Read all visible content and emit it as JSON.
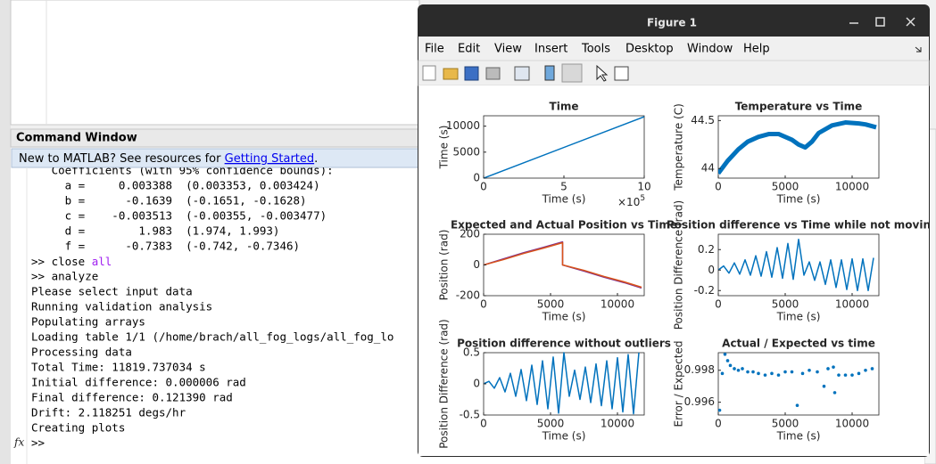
{
  "command_window": {
    "title": "Command Window",
    "banner": {
      "text": "New to MATLAB? See resources for ",
      "link": "Getting Started",
      "end": "."
    },
    "lines": [
      "   Coefficients (with 95% confidence bounds):",
      "     a =     0.003388  (0.003353, 0.003424)",
      "     b =      -0.1639  (-0.1651, -0.1628)",
      "     c =    -0.003513  (-0.00355, -0.003477)",
      "     d =        1.983  (1.974, 1.993)",
      "     f =      -0.7383  (-0.742, -0.7346)",
      {
        "text": ">> close ",
        "keyword": "all"
      },
      ">> analyze",
      "Please select input data",
      "Running validation analysis",
      "Populating arrays",
      "Loading table 1/1 (/home/brach/all_fog_logs/all_fog_lo",
      "Processing data",
      "Total Time: 11819.737034 s",
      "Initial difference: 0.000006 rad",
      "Final difference: 0.121390 rad",
      "Drift: 2.118251 degs/hr",
      "Creating plots",
      ">>"
    ],
    "prompt_icon": "fx"
  },
  "figure": {
    "title": "Figure 1",
    "menu": [
      "File",
      "Edit",
      "View",
      "Insert",
      "Tools",
      "Desktop",
      "Window",
      "Help"
    ]
  },
  "chart_data": [
    {
      "type": "line",
      "title": "Time",
      "x_label": "Time (s)",
      "y_label": "Time (s)",
      "x_multiplier": {
        "base": "×10",
        "exponent": "5"
      },
      "x": [
        0,
        10
      ],
      "series": [
        {
          "color": "#0072bd",
          "values": [
            0,
            11820
          ]
        }
      ],
      "xlim": [
        0,
        10
      ],
      "xticks": [
        0,
        5,
        10
      ],
      "ylim": [
        0,
        12000
      ],
      "yticks": [
        0,
        5000,
        10000
      ]
    },
    {
      "type": "line",
      "title": "Temperature vs Time",
      "x_label": "Time (s)",
      "y_label": "Temperature (C)",
      "x": [
        0,
        700,
        1500,
        2200,
        3000,
        3800,
        4500,
        5000,
        5500,
        6000,
        6500,
        7000,
        7500,
        8500,
        9500,
        10500,
        11000,
        11800
      ],
      "series": [
        {
          "color": "#0072bd",
          "values": [
            43.95,
            44.08,
            44.2,
            44.28,
            44.33,
            44.36,
            44.36,
            44.33,
            44.3,
            44.25,
            44.22,
            44.28,
            44.37,
            44.45,
            44.48,
            44.47,
            44.46,
            44.43
          ]
        }
      ],
      "xlim": [
        0,
        12000
      ],
      "xticks": [
        0,
        5000,
        10000
      ],
      "ylim": [
        43.9,
        44.55
      ],
      "yticks": [
        44,
        44.5
      ]
    },
    {
      "type": "line",
      "title": "Expected and Actual Position vs Time",
      "x_label": "Time (s)",
      "y_label": "Position (rad)",
      "x": [
        0,
        1500,
        3000,
        4500,
        5900,
        5900,
        7500,
        9000,
        10500,
        11800
      ],
      "series": [
        {
          "color": "#7e2f8e",
          "values": [
            0,
            40,
            80,
            115,
            150,
            0,
            -40,
            -80,
            -115,
            -150
          ]
        },
        {
          "color": "#d95319",
          "values": [
            0,
            35,
            75,
            110,
            145,
            0,
            -35,
            -75,
            -110,
            -145
          ]
        }
      ],
      "xlim": [
        0,
        12000
      ],
      "xticks": [
        0,
        5000,
        10000
      ],
      "ylim": [
        -200,
        200
      ],
      "yticks": [
        -200,
        0,
        200
      ]
    },
    {
      "type": "line",
      "title": "Position difference vs Time while not movin",
      "x_label": "Time (s)",
      "y_label": "Position Difference (rad)",
      "x": [
        0,
        400,
        800,
        1200,
        1600,
        2000,
        2400,
        2800,
        3200,
        3600,
        4000,
        4400,
        4800,
        5200,
        5600,
        6000,
        6400,
        6800,
        7200,
        7600,
        8000,
        8400,
        8800,
        9200,
        9600,
        10000,
        10400,
        10800,
        11200,
        11600
      ],
      "series": [
        {
          "color": "#0072bd",
          "values": [
            0,
            0.04,
            -0.03,
            0.07,
            -0.04,
            0.1,
            -0.05,
            0.14,
            -0.06,
            0.18,
            -0.07,
            0.22,
            -0.08,
            0.26,
            -0.09,
            0.3,
            -0.05,
            0.08,
            -0.1,
            0.08,
            -0.14,
            0.1,
            -0.17,
            0.1,
            -0.19,
            0.11,
            -0.2,
            0.11,
            -0.2,
            0.12
          ]
        }
      ],
      "xlim": [
        0,
        12000
      ],
      "xticks": [
        0,
        5000,
        10000
      ],
      "ylim": [
        -0.25,
        0.35
      ],
      "yticks": [
        -0.2,
        0,
        0.2
      ]
    },
    {
      "type": "line",
      "title": "Position difference without outliers",
      "x_label": "Time (s)",
      "y_label": "Position Difference (rad)",
      "x": [
        0,
        400,
        800,
        1200,
        1600,
        2000,
        2400,
        2800,
        3200,
        3600,
        4000,
        4400,
        4800,
        5200,
        5600,
        6000,
        6400,
        6800,
        7200,
        7600,
        8000,
        8400,
        8800,
        9200,
        9600,
        10000,
        10400,
        10800,
        11200,
        11600
      ],
      "series": [
        {
          "color": "#0072bd",
          "values": [
            0,
            0.04,
            -0.07,
            0.1,
            -0.13,
            0.17,
            -0.2,
            0.23,
            -0.27,
            0.3,
            -0.33,
            0.37,
            -0.4,
            0.43,
            -0.47,
            0.5,
            -0.2,
            0.22,
            -0.25,
            0.27,
            -0.3,
            0.32,
            -0.35,
            0.37,
            -0.4,
            0.42,
            -0.45,
            0.47,
            -0.48,
            0.5
          ]
        }
      ],
      "xlim": [
        0,
        12000
      ],
      "xticks": [
        0,
        5000,
        10000
      ],
      "ylim": [
        -0.5,
        0.5
      ],
      "yticks": [
        -0.5,
        0,
        0.5
      ]
    },
    {
      "type": "scatter",
      "title": "Actual / Expected vs time",
      "x_label": "Time (s)",
      "y_label": "Error / Expected",
      "x": [
        100,
        300,
        500,
        700,
        900,
        1200,
        1500,
        1800,
        2200,
        2600,
        3000,
        3500,
        4000,
        4500,
        5000,
        5500,
        5900,
        6300,
        6800,
        7400,
        7900,
        8200,
        8600,
        8700,
        9000,
        9500,
        10000,
        10500,
        11000,
        11500
      ],
      "series": [
        {
          "color": "#0072bd",
          "values": [
            0.9955,
            0.9978,
            0.999,
            0.9986,
            0.9983,
            0.9981,
            0.998,
            0.9981,
            0.9979,
            0.9979,
            0.9978,
            0.9977,
            0.9978,
            0.9977,
            0.9979,
            0.9979,
            0.9958,
            0.9978,
            0.998,
            0.9979,
            0.997,
            0.9981,
            0.9982,
            0.9966,
            0.9977,
            0.9977,
            0.9977,
            0.9978,
            0.998,
            0.9981
          ]
        }
      ],
      "xlim": [
        0,
        12000
      ],
      "xticks": [
        0,
        5000,
        10000
      ],
      "ylim": [
        0.9952,
        0.9991
      ],
      "yticks": [
        0.996,
        0.998
      ]
    }
  ]
}
